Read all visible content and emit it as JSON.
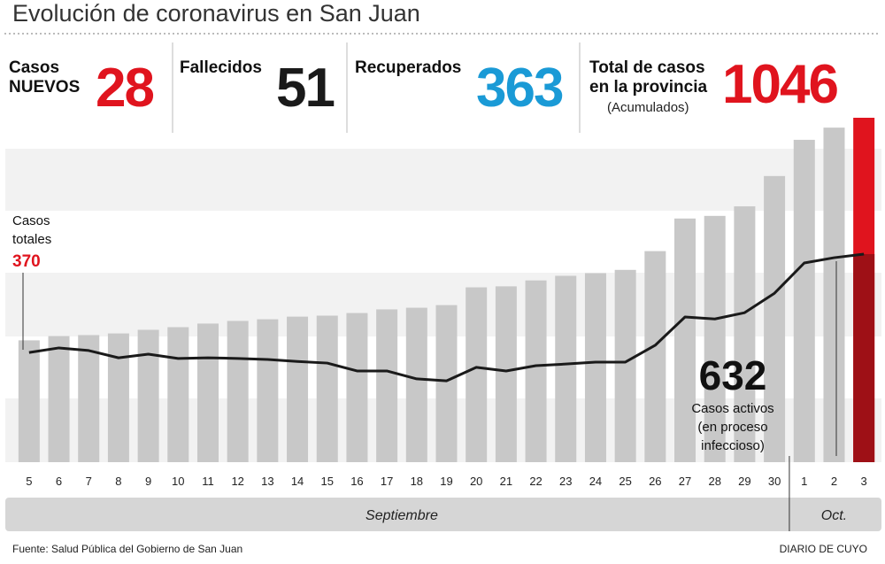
{
  "title": "Evolución de coronavirus en San Juan",
  "stats": {
    "new": {
      "label_1": "Casos",
      "label_2": "NUEVOS",
      "value": 28,
      "color": "#e0141e"
    },
    "deaths": {
      "label": "Fallecidos",
      "value": 51,
      "color": "#1a1a1a"
    },
    "recovered": {
      "label": "Recuperados",
      "value": 363,
      "color": "#1a9ad6"
    },
    "total": {
      "label_1": "Total de casos",
      "label_2": "en la provincia",
      "note": "(Acumulados)",
      "color": "#e0141e"
    }
  },
  "chart_data": {
    "type": "bar-line",
    "categories": [
      "5",
      "6",
      "7",
      "8",
      "9",
      "10",
      "11",
      "12",
      "13",
      "14",
      "15",
      "16",
      "17",
      "18",
      "19",
      "20",
      "21",
      "22",
      "23",
      "24",
      "25",
      "26",
      "27",
      "28",
      "29",
      "30",
      "1",
      "2",
      "3"
    ],
    "months": [
      {
        "label": "Septiembre",
        "from": 0,
        "to": 25
      },
      {
        "label": "Oct.",
        "from": 26,
        "to": 28
      }
    ],
    "series": [
      {
        "name": "Casos totales",
        "type": "bar",
        "color": "#c8c8c8",
        "highlight_color": "#e0141e",
        "highlight_index": 28,
        "values": [
          370,
          383,
          386,
          391,
          402,
          410,
          421,
          429,
          434,
          442,
          445,
          453,
          464,
          469,
          477,
          531,
          534,
          552,
          566,
          574,
          584,
          641,
          740,
          748,
          777,
          869,
          979,
          1016,
          1046
        ]
      },
      {
        "name": "Casos activos",
        "type": "line",
        "color": "#1a1a1a",
        "highlight_color": "#9e1016",
        "values": [
          333,
          347,
          339,
          317,
          328,
          315,
          317,
          315,
          312,
          306,
          301,
          277,
          277,
          253,
          247,
          288,
          277,
          293,
          298,
          304,
          304,
          355,
          441,
          435,
          454,
          513,
          605,
          621,
          632
        ]
      }
    ],
    "annotations": {
      "totals_1": "Casos",
      "totals_2": "totales",
      "active_1": "Casos activos",
      "active_2": "(en proceso",
      "active_3": "infeccioso)"
    }
  },
  "footer": {
    "source": "Fuente: Salud Pública del Gobierno de San Juan",
    "brand": "DIARIO DE CUYO"
  }
}
